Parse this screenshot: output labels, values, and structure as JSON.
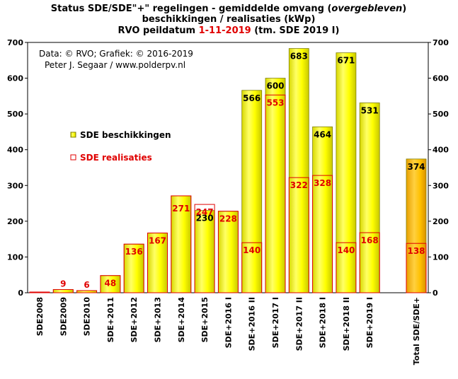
{
  "title": {
    "line1_prefix": "Status SDE/SDE\"+\"  regelingen - gemiddelde omvang (",
    "line1_italic": "overgebleven",
    "line1_suffix": ")",
    "line2": "beschikkingen  / realisaties (kWp)",
    "line3_prefix": "RVO peildatum ",
    "line3_date": "1-11-2019",
    "line3_suffix": " (tm. SDE 2019 I)"
  },
  "credits": {
    "line1": "Data: © RVO; Grafiek:  © 2016-2019",
    "line2": "Peter J. Segaar / www.polderpv.nl"
  },
  "legend": {
    "beschikkingen": "SDE beschikkingen",
    "realisaties": "SDE realisaties"
  },
  "colors": {
    "bar_fill": "#ffff00",
    "bar_edge": "#808000",
    "realisatie_line": "#e00000",
    "total_fill": "#ffc000",
    "label_red": "#e00000",
    "date_red": "#e00000"
  },
  "chart_data": {
    "type": "bar",
    "ylim": [
      0,
      700
    ],
    "yticks": [
      0,
      100,
      200,
      300,
      400,
      500,
      600,
      700
    ],
    "grid": false,
    "legend_position": "left",
    "categories": [
      "SDE2008",
      "SDE2009",
      "SDE2010",
      "SDE+2011",
      "SDE+2012",
      "SDE+2013",
      "SDE+2014",
      "SDE+2015",
      "SDE+2016 I",
      "SDE+2016 II",
      "SDE+2017 I",
      "SDE+2017 II",
      "SDE+2018 I",
      "SDE+2018 II",
      "SDE+2019 I",
      "Total SDE/SDE+"
    ],
    "series": [
      {
        "name": "SDE beschikkingen",
        "values": [
          2,
          9,
          6,
          48,
          136,
          167,
          271,
          230,
          228,
          566,
          600,
          683,
          464,
          671,
          531,
          374
        ],
        "labels": [
          "",
          "",
          "",
          "",
          "",
          "",
          "",
          "230",
          "",
          "566",
          "600",
          "683",
          "464",
          "671",
          "531",
          "374"
        ]
      },
      {
        "name": "SDE realisaties",
        "values": [
          2,
          9,
          6,
          48,
          136,
          167,
          271,
          247,
          228,
          140,
          553,
          322,
          328,
          140,
          168,
          138
        ],
        "labels": [
          "",
          "9",
          "6",
          "48",
          "136",
          "167",
          "271",
          "247",
          "228",
          "140",
          "553",
          "322",
          "328",
          "140",
          "168",
          "138"
        ]
      }
    ]
  }
}
